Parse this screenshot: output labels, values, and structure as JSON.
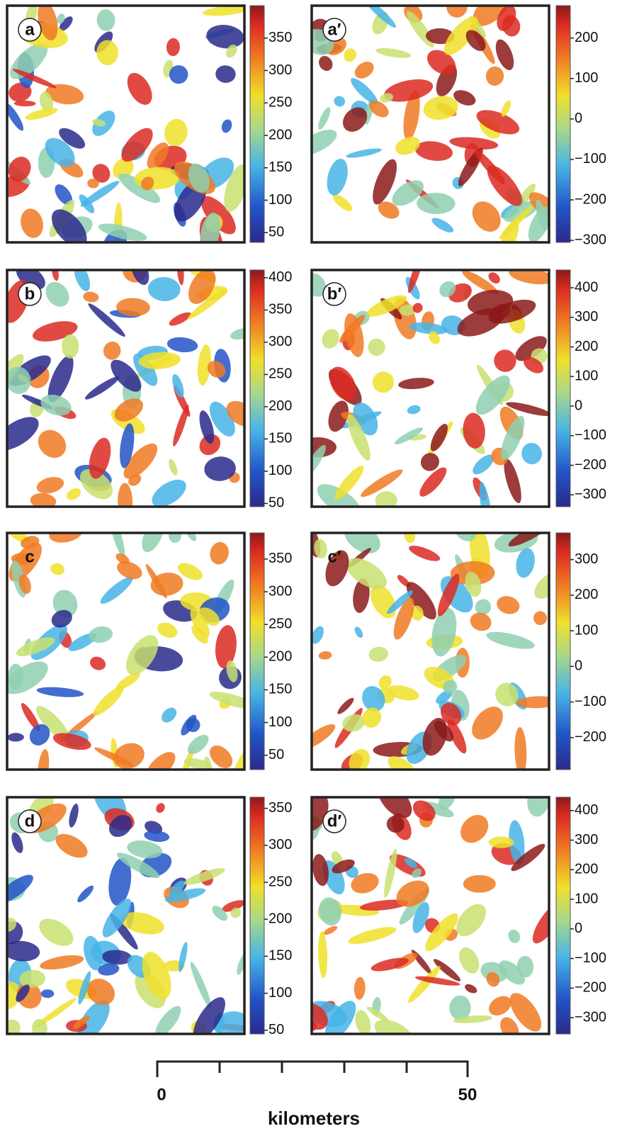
{
  "panels": [
    {
      "label": "a",
      "colorbar": {
        "range": [
          35,
          400
        ],
        "ticks": [
          50,
          100,
          150,
          200,
          250,
          300,
          350
        ]
      }
    },
    {
      "label": "a′",
      "colorbar": {
        "range": [
          -305,
          280
        ],
        "ticks": [
          {
            "value": -300,
            "label": "−300"
          },
          {
            "value": -200,
            "label": "−200"
          },
          {
            "value": -100,
            "label": "−100"
          },
          0,
          100,
          200
        ]
      }
    },
    {
      "label": "b",
      "colorbar": {
        "range": [
          45,
          412
        ],
        "ticks": [
          50,
          100,
          150,
          200,
          250,
          300,
          350,
          400
        ]
      }
    },
    {
      "label": "b′",
      "colorbar": {
        "range": [
          -340,
          460
        ],
        "ticks": [
          {
            "value": -300,
            "label": "−300"
          },
          {
            "value": -200,
            "label": "−200"
          },
          {
            "value": -100,
            "label": "−100"
          },
          0,
          100,
          200,
          300,
          400
        ]
      }
    },
    {
      "label": "c",
      "colorbar": {
        "range": [
          28,
          390
        ],
        "ticks": [
          50,
          100,
          150,
          200,
          250,
          300,
          350
        ]
      }
    },
    {
      "label": "c′",
      "colorbar": {
        "range": [
          -290,
          375
        ],
        "ticks": [
          {
            "value": -200,
            "label": "−200"
          },
          {
            "value": -100,
            "label": "−100"
          },
          0,
          100,
          200,
          300
        ]
      }
    },
    {
      "label": "d",
      "colorbar": {
        "range": [
          45,
          365
        ],
        "ticks": [
          50,
          100,
          150,
          200,
          250,
          300,
          350
        ]
      }
    },
    {
      "label": "d′",
      "colorbar": {
        "range": [
          -355,
          445
        ],
        "ticks": [
          {
            "value": -300,
            "label": "−300"
          },
          {
            "value": -200,
            "label": "−200"
          },
          {
            "value": -100,
            "label": "−100"
          },
          0,
          100,
          200,
          300,
          400
        ]
      }
    }
  ],
  "scale_bar": {
    "start": 0,
    "end": 50,
    "unit": "kilometers"
  }
}
